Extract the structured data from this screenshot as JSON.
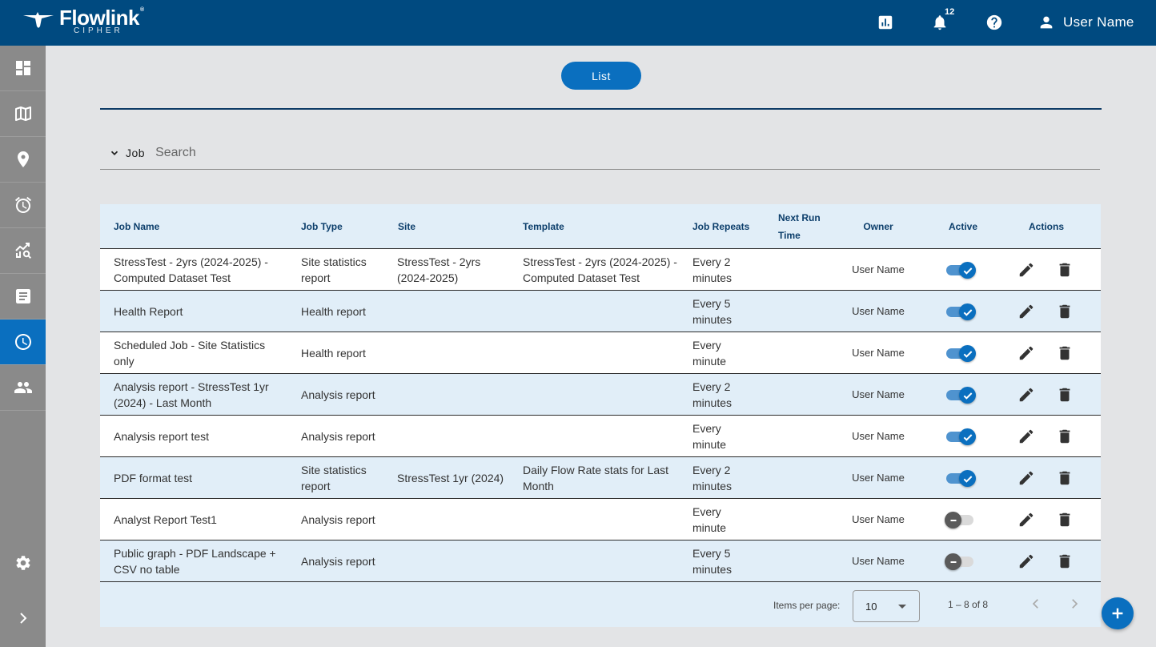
{
  "app": {
    "brand_title": "Flowlink",
    "brand_trademark": "®",
    "brand_subtitle": "CIPHER"
  },
  "header": {
    "notification_count": "12",
    "user_name": "User Name",
    "icons": [
      "report-chart-icon",
      "bell-icon",
      "help-icon",
      "person-icon"
    ]
  },
  "sidebar": {
    "items": [
      {
        "name": "dashboard",
        "icon": "dashboard-icon"
      },
      {
        "name": "map",
        "icon": "map-icon"
      },
      {
        "name": "sites",
        "icon": "location-pin-icon"
      },
      {
        "name": "alarms",
        "icon": "alarm-clock-icon"
      },
      {
        "name": "analytics",
        "icon": "analytics-icon"
      },
      {
        "name": "reports",
        "icon": "report-document-icon"
      },
      {
        "name": "scheduled-jobs",
        "icon": "clock-icon",
        "active": true
      },
      {
        "name": "users",
        "icon": "people-icon"
      }
    ],
    "bottom": [
      "settings-gear-icon",
      "expand-chevron-icon"
    ]
  },
  "toolbar": {
    "list_label": "List"
  },
  "search": {
    "field_label": "Job",
    "placeholder": "Search"
  },
  "table": {
    "headers": {
      "job_name": "Job Name",
      "job_type": "Job Type",
      "site": "Site",
      "template": "Template",
      "job_repeats": "Job Repeats",
      "next_run_time": "Next Run Time",
      "owner": "Owner",
      "active": "Active",
      "actions": "Actions"
    },
    "rows": [
      {
        "job_name": "StressTest - 2yrs (2024-2025) - Computed Dataset Test",
        "job_type": "Site statistics report",
        "site": "StressTest - 2yrs (2024-2025)",
        "template": "StressTest - 2yrs (2024-2025) - Computed Dataset Test",
        "job_repeats": "Every 2 minutes",
        "next_run_time": "",
        "owner": "User Name",
        "active": true
      },
      {
        "job_name": "Health Report",
        "job_type": "Health report",
        "site": "",
        "template": "",
        "job_repeats": "Every 5 minutes",
        "next_run_time": "",
        "owner": "User Name",
        "active": true
      },
      {
        "job_name": "Scheduled Job - Site Statistics only",
        "job_type": "Health report",
        "site": "",
        "template": "",
        "job_repeats": "Every minute",
        "next_run_time": "",
        "owner": "User Name",
        "active": true
      },
      {
        "job_name": "Analysis report - StressTest 1yr (2024) - Last Month",
        "job_type": "Analysis report",
        "site": "",
        "template": "",
        "job_repeats": "Every 2 minutes",
        "next_run_time": "",
        "owner": "User Name",
        "active": true
      },
      {
        "job_name": "Analysis report test",
        "job_type": "Analysis report",
        "site": "",
        "template": "",
        "job_repeats": "Every minute",
        "next_run_time": "",
        "owner": "User Name",
        "active": true
      },
      {
        "job_name": "PDF format test",
        "job_type": "Site statistics report",
        "site": "StressTest 1yr (2024)",
        "template": "Daily Flow Rate stats for Last Month",
        "job_repeats": "Every 2 minutes",
        "next_run_time": "",
        "owner": "User Name",
        "active": true
      },
      {
        "job_name": "Analyst Report Test1",
        "job_type": "Analysis report",
        "site": "",
        "template": "",
        "job_repeats": "Every minute",
        "next_run_time": "",
        "owner": "User Name",
        "active": false
      },
      {
        "job_name": "Public graph - PDF Landscape + CSV no table",
        "job_type": "Analysis report",
        "site": "",
        "template": "",
        "job_repeats": "Every 5 minutes",
        "next_run_time": "",
        "owner": "User Name",
        "active": false
      }
    ]
  },
  "paginator": {
    "items_per_page_label": "Items per page:",
    "items_per_page_value": "10",
    "range_label": "1 – 8 of 8"
  },
  "colors": {
    "header_bg": "#004a80",
    "sidebar_bg": "#8a8a8a",
    "accent": "#0a6fbf",
    "row_alt": "#e1eef8"
  }
}
